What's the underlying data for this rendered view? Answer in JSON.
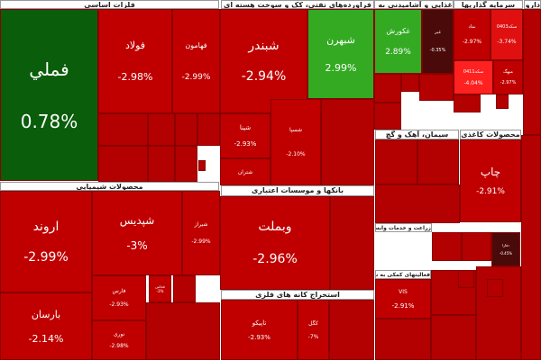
{
  "sectors": [
    {
      "label": "فلزات اساسی"
    },
    {
      "label": "فراورده‌های نفتی، کک و سوخت هسته ای"
    },
    {
      "label": "غذایی و آشامیدنی به جز قند"
    },
    {
      "label": "سرمایه گذاریها"
    },
    {
      "label": "دارویی"
    },
    {
      "label": "محصولات شیمیایی"
    },
    {
      "label": "بانکها و موسسات اعتباری"
    },
    {
      "label": "سیمان، آهک و گچ"
    },
    {
      "label": "محصولات کاغذی"
    },
    {
      "label": "استخراج کانه های فلزی"
    },
    {
      "label": "زراعت و خدمات وابسته"
    },
    {
      "label": "فعالیتهای کمکی به نهادهای مالی"
    }
  ],
  "tiles": [
    {
      "name": "فملي",
      "change": "0.78%"
    },
    {
      "name": "فولاد",
      "change": "-2.98%"
    },
    {
      "name": "فهامون",
      "change": "-2.99%"
    },
    {
      "name": "شبندر",
      "change": "-2.94%"
    },
    {
      "name": "شبهرن",
      "change": "2.99%"
    },
    {
      "name": "شپنا",
      "change": "-2.93%"
    },
    {
      "name": "شتران",
      "change": ""
    },
    {
      "name": "غکورش",
      "change": "2.89%"
    },
    {
      "name": "غبر",
      "change": "-0.35%"
    },
    {
      "name": "نماد",
      "change": "-2.97%"
    },
    {
      "name": "سکه0403",
      "change": "-3.74%"
    },
    {
      "name": "سکه0411",
      "change": "-4.04%"
    },
    {
      "name": "میهگ",
      "change": "-2.97%"
    },
    {
      "name": "اروند",
      "change": "-2.99%"
    },
    {
      "name": "بارسان",
      "change": "-2.14%"
    },
    {
      "name": "شپدیس",
      "change": "-3%"
    },
    {
      "name": "شیراز",
      "change": "-2.99%"
    },
    {
      "name": "فارس",
      "change": "-2.93%"
    },
    {
      "name": "نوری",
      "change": "-2.98%"
    },
    {
      "name": "وبملت",
      "change": "-2.96%"
    },
    {
      "name": "چاپ",
      "change": "-2.91%"
    },
    {
      "name": "کگل",
      "change": "-7%"
    },
    {
      "name": "تاپیکو",
      "change": "-2.93%"
    },
    {
      "name": "VIS",
      "change": "-2.91%"
    },
    {
      "name": "فخاس",
      "change": "-3%"
    },
    {
      "name": "شسپا",
      "change": "-2.10%"
    },
    {
      "name": "دفارا",
      "change": "-0.45%"
    }
  ],
  "colors": {
    "down": "#c00000",
    "up": "#33aa22",
    "up_dark": "#0a5d0a",
    "header_bg": "#ffffff"
  }
}
